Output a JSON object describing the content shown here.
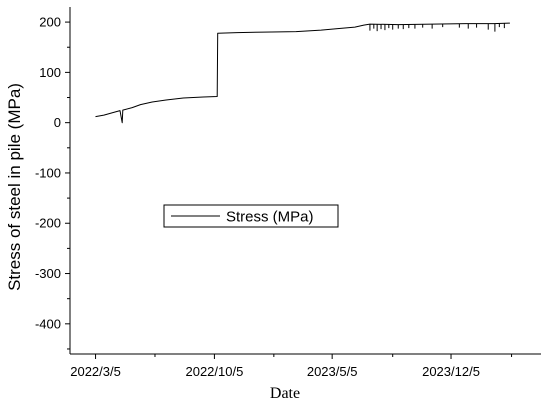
{
  "chart_data": {
    "type": "line",
    "title": "",
    "xlabel": "Date",
    "ylabel": "Stress of steel in pile (MPa)",
    "x_axis": {
      "type": "date",
      "range": [
        "2022-01-18",
        "2024-05-15"
      ],
      "tick_dates": [
        "2022-03-05",
        "2022-10-05",
        "2023-05-05",
        "2023-12-05"
      ],
      "tick_labels": [
        "2022/3/5",
        "2022/10/5",
        "2023/5/5",
        "2023/12/5"
      ]
    },
    "y_axis": {
      "range": [
        -460,
        230
      ],
      "ticks": [
        200,
        100,
        0,
        -100,
        -200,
        -300,
        -400
      ],
      "tick_labels": [
        "200",
        "100",
        "0",
        "-100",
        "-200",
        "-300",
        "-400"
      ]
    },
    "grid": false,
    "legend": {
      "position": "center-left",
      "entries": [
        "Stress (MPa)"
      ]
    },
    "series": [
      {
        "name": "Stress (MPa)",
        "color": "#000000",
        "points": [
          {
            "x": "2022-03-05",
            "y": 12
          },
          {
            "x": "2022-03-20",
            "y": 15
          },
          {
            "x": "2022-04-05",
            "y": 20
          },
          {
            "x": "2022-04-18",
            "y": 24
          },
          {
            "x": "2022-04-22",
            "y": 0
          },
          {
            "x": "2022-04-23",
            "y": 25
          },
          {
            "x": "2022-05-10",
            "y": 30
          },
          {
            "x": "2022-05-25",
            "y": 36
          },
          {
            "x": "2022-06-15",
            "y": 41
          },
          {
            "x": "2022-07-10",
            "y": 45
          },
          {
            "x": "2022-08-10",
            "y": 49
          },
          {
            "x": "2022-09-15",
            "y": 51
          },
          {
            "x": "2022-10-10",
            "y": 52
          },
          {
            "x": "2022-10-11",
            "y": 178
          },
          {
            "x": "2022-11-15",
            "y": 179
          },
          {
            "x": "2023-01-01",
            "y": 180
          },
          {
            "x": "2023-03-01",
            "y": 181
          },
          {
            "x": "2023-04-15",
            "y": 184
          },
          {
            "x": "2023-05-15",
            "y": 187
          },
          {
            "x": "2023-06-15",
            "y": 190
          },
          {
            "x": "2023-07-01",
            "y": 194
          },
          {
            "x": "2023-07-12",
            "y": 196
          },
          {
            "x": "2023-09-01",
            "y": 195
          },
          {
            "x": "2023-11-01",
            "y": 196
          },
          {
            "x": "2024-01-01",
            "y": 197
          },
          {
            "x": "2024-02-20",
            "y": 197
          },
          {
            "x": "2024-03-20",
            "y": 198
          }
        ],
        "dropouts": [
          {
            "x": "2023-07-12",
            "y": 183
          },
          {
            "x": "2023-07-19",
            "y": 187
          },
          {
            "x": "2023-07-25",
            "y": 182
          },
          {
            "x": "2023-08-01",
            "y": 186
          },
          {
            "x": "2023-08-08",
            "y": 184
          },
          {
            "x": "2023-08-15",
            "y": 188
          },
          {
            "x": "2023-08-22",
            "y": 185
          },
          {
            "x": "2023-09-01",
            "y": 187
          },
          {
            "x": "2023-09-10",
            "y": 186
          },
          {
            "x": "2023-09-20",
            "y": 188
          },
          {
            "x": "2023-10-01",
            "y": 187
          },
          {
            "x": "2023-10-15",
            "y": 189
          },
          {
            "x": "2023-11-01",
            "y": 187
          },
          {
            "x": "2023-11-20",
            "y": 190
          },
          {
            "x": "2023-12-20",
            "y": 189
          },
          {
            "x": "2024-01-05",
            "y": 187
          },
          {
            "x": "2024-01-20",
            "y": 189
          },
          {
            "x": "2024-02-10",
            "y": 185
          },
          {
            "x": "2024-02-22",
            "y": 181
          },
          {
            "x": "2024-03-01",
            "y": 190
          },
          {
            "x": "2024-03-10",
            "y": 188
          }
        ]
      }
    ]
  }
}
